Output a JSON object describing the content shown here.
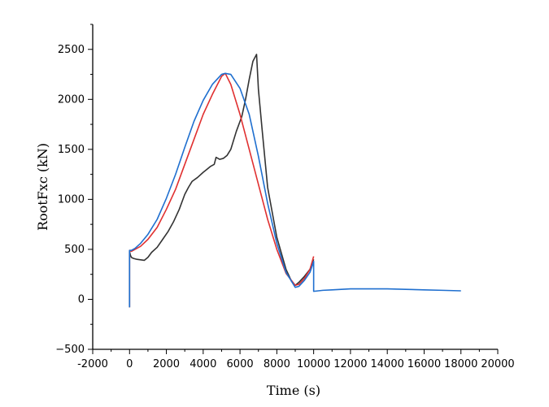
{
  "chart_data": {
    "type": "line",
    "xlabel": "Time (s)",
    "ylabel": "RootFxc (kN)",
    "xlim": [
      -2000,
      20000
    ],
    "ylim": [
      -500,
      2750
    ],
    "x_ticks": [
      -2000,
      0,
      2000,
      4000,
      6000,
      8000,
      10000,
      12000,
      14000,
      16000,
      18000,
      20000
    ],
    "y_ticks": [
      -500,
      0,
      500,
      1000,
      1500,
      2000,
      2500
    ],
    "grid": false,
    "legend": "none",
    "series": [
      {
        "color": "#333333",
        "x": [
          0,
          0,
          50,
          100,
          200,
          400,
          800,
          1000,
          1200,
          1500,
          1800,
          2100,
          2400,
          2700,
          3000,
          3200,
          3400,
          3700,
          4000,
          4200,
          4400,
          4600,
          4700,
          4900,
          5100,
          5300,
          5500,
          5800,
          6100,
          6300,
          6500,
          6700,
          6900,
          7000,
          7200,
          7500,
          8000,
          8500,
          8800,
          9000,
          9200,
          9500,
          9800,
          10000
        ],
        "y": [
          -80,
          480,
          440,
          420,
          410,
          400,
          390,
          420,
          470,
          520,
          600,
          680,
          780,
          900,
          1050,
          1120,
          1180,
          1220,
          1270,
          1300,
          1330,
          1350,
          1420,
          1400,
          1410,
          1440,
          1500,
          1680,
          1830,
          2000,
          2200,
          2380,
          2450,
          2100,
          1700,
          1120,
          620,
          300,
          180,
          140,
          170,
          230,
          300,
          400
        ]
      },
      {
        "color": "#e03030",
        "x": [
          0,
          0,
          100,
          300,
          600,
          1000,
          1500,
          2000,
          2500,
          3000,
          3500,
          4000,
          4500,
          5000,
          5200,
          5500,
          6000,
          6500,
          7000,
          7500,
          8000,
          8500,
          9000,
          9200,
          9500,
          9800,
          10000
        ],
        "y": [
          -80,
          490,
          480,
          500,
          530,
          600,
          720,
          900,
          1100,
          1350,
          1600,
          1850,
          2050,
          2230,
          2260,
          2150,
          1850,
          1500,
          1150,
          800,
          500,
          260,
          140,
          150,
          210,
          300,
          430
        ]
      },
      {
        "color": "#1f6fcf",
        "x": [
          0,
          0,
          100,
          300,
          600,
          1000,
          1500,
          2000,
          2500,
          3000,
          3500,
          4000,
          4500,
          5000,
          5200,
          5500,
          6000,
          6500,
          7000,
          7500,
          8000,
          8500,
          9000,
          9200,
          9500,
          9800,
          10000,
          10000,
          10500,
          11000,
          12000,
          13000,
          14000,
          15000,
          16000,
          17000,
          18000
        ],
        "y": [
          -80,
          490,
          490,
          510,
          560,
          650,
          800,
          1010,
          1250,
          1520,
          1780,
          1990,
          2150,
          2250,
          2260,
          2250,
          2110,
          1850,
          1430,
          960,
          560,
          270,
          120,
          130,
          190,
          270,
          380,
          80,
          90,
          95,
          105,
          105,
          105,
          100,
          95,
          90,
          85
        ]
      }
    ]
  }
}
